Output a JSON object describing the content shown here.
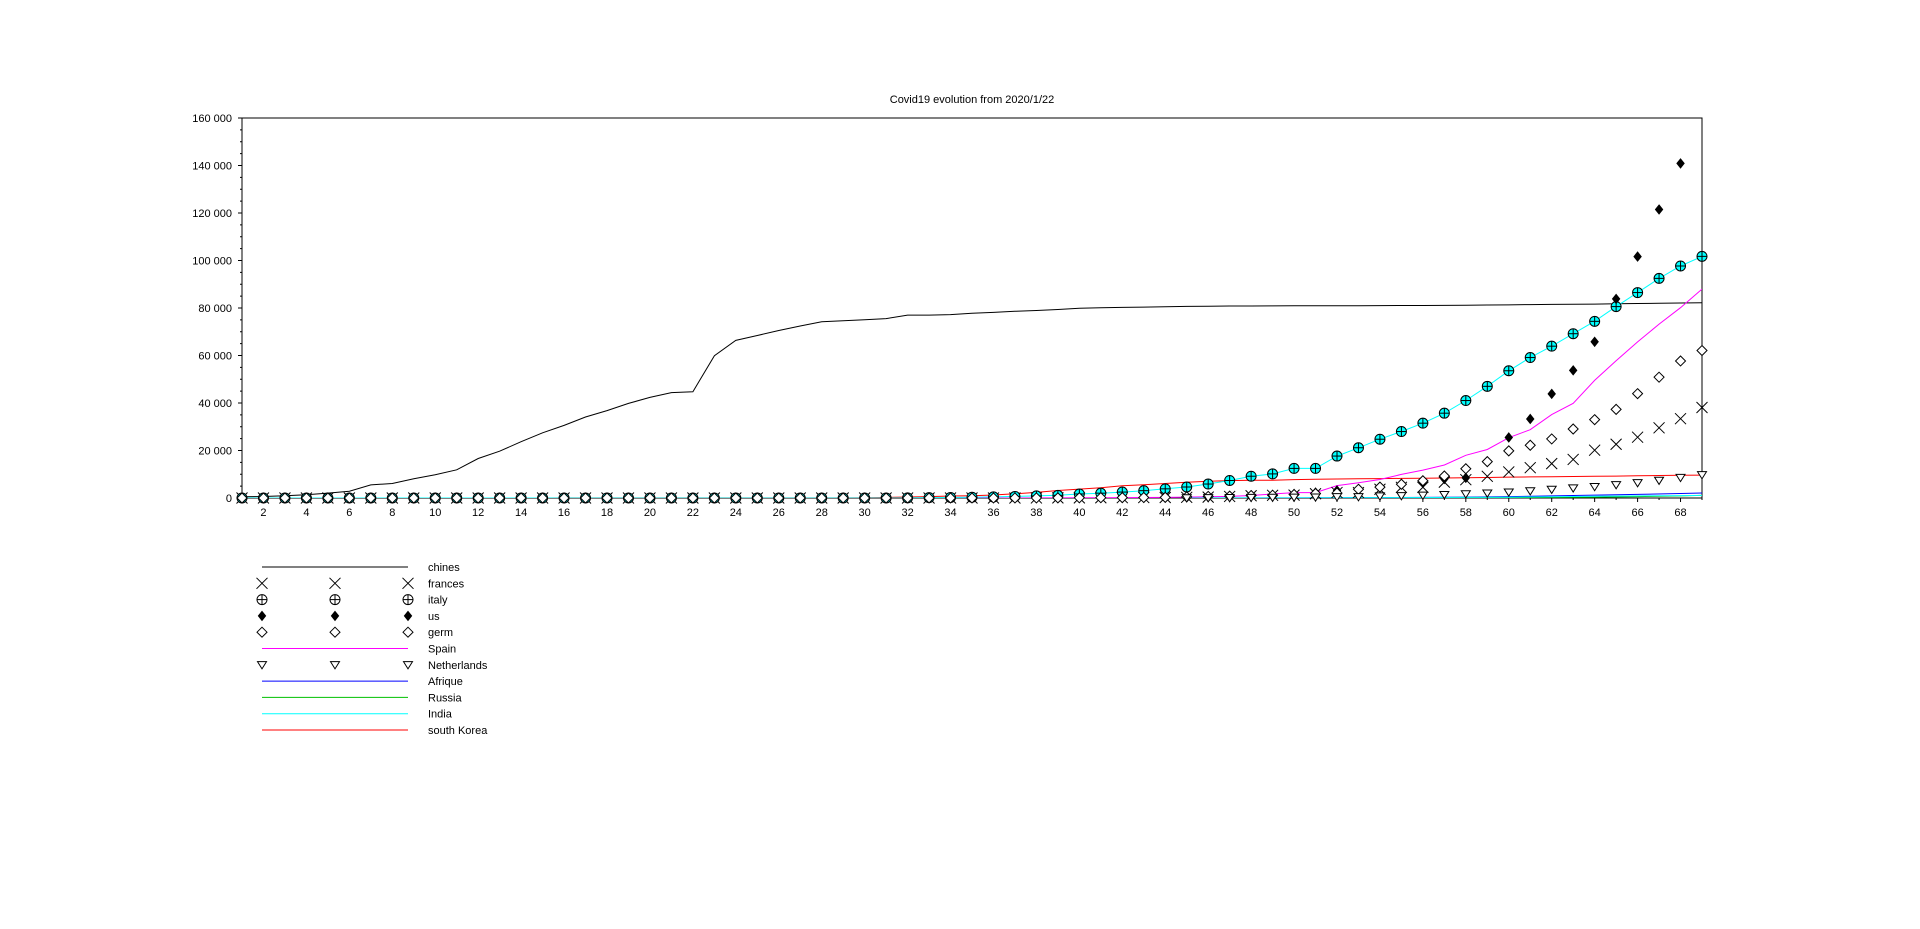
{
  "chart_data": {
    "type": "scatter",
    "title": "Covid19 evolution from 2020/1/22",
    "xlabel": "",
    "ylabel": "",
    "xlim": [
      1,
      69
    ],
    "ylim": [
      0,
      160000
    ],
    "grid": false,
    "legend_position": "bottom-left",
    "x_ticks": [
      2,
      4,
      6,
      8,
      10,
      12,
      14,
      16,
      18,
      20,
      22,
      24,
      26,
      28,
      30,
      32,
      34,
      36,
      38,
      40,
      42,
      44,
      46,
      48,
      50,
      52,
      54,
      56,
      58,
      60,
      62,
      64,
      66,
      68
    ],
    "y_ticks": [
      {
        "value": 0,
        "label": "0"
      },
      {
        "value": 20000,
        "label": "20 000"
      },
      {
        "value": 40000,
        "label": "40 000"
      },
      {
        "value": 60000,
        "label": "60 000"
      },
      {
        "value": 80000,
        "label": "80 000"
      },
      {
        "value": 100000,
        "label": "100 000"
      },
      {
        "value": 120000,
        "label": "120 000"
      },
      {
        "value": 140000,
        "label": "140 000"
      },
      {
        "value": 160000,
        "label": "160 000"
      }
    ],
    "series": [
      {
        "name": "chines",
        "style": "line",
        "color": "#000000",
        "x": [
          1,
          2,
          3,
          4,
          5,
          6,
          7,
          8,
          9,
          10,
          11,
          12,
          13,
          14,
          15,
          16,
          17,
          18,
          19,
          20,
          21,
          22,
          23,
          24,
          25,
          26,
          27,
          28,
          29,
          30,
          31,
          32,
          33,
          34,
          35,
          36,
          37,
          38,
          39,
          40,
          41,
          42,
          43,
          44,
          45,
          46,
          47,
          48,
          49,
          50,
          51,
          52,
          53,
          54,
          55,
          56,
          57,
          58,
          59,
          60,
          61,
          62,
          63,
          64,
          65,
          66,
          67,
          68,
          69
        ],
        "values": [
          548,
          643,
          920,
          1406,
          2075,
          2877,
          5509,
          6087,
          8141,
          9802,
          11891,
          16630,
          19716,
          23707,
          27440,
          30587,
          34110,
          36814,
          39829,
          42354,
          44386,
          44759,
          59895,
          66358,
          68413,
          70513,
          72434,
          74211,
          74619,
          75077,
          75550,
          77001,
          77022,
          77241,
          77754,
          78166,
          78600,
          78928,
          79356,
          79932,
          80136,
          80261,
          80386,
          80537,
          80690,
          80770,
          80823,
          80860,
          80887,
          80921,
          80932,
          80945,
          80977,
          81003,
          81033,
          81058,
          81102,
          81156,
          81250,
          81305,
          81435,
          81498,
          81591,
          81661,
          81782,
          81897,
          81999,
          82122,
          82198
        ]
      },
      {
        "name": "frances",
        "style": "marker",
        "marker": "x",
        "color": "#000000",
        "x": [
          1,
          2,
          3,
          4,
          5,
          6,
          7,
          8,
          9,
          10,
          11,
          12,
          13,
          14,
          15,
          16,
          17,
          18,
          19,
          20,
          21,
          22,
          23,
          24,
          25,
          26,
          27,
          28,
          29,
          30,
          31,
          32,
          33,
          34,
          35,
          36,
          37,
          38,
          39,
          40,
          41,
          42,
          43,
          44,
          45,
          46,
          47,
          48,
          49,
          50,
          51,
          52,
          53,
          54,
          55,
          56,
          57,
          58,
          59,
          60,
          61,
          62,
          63,
          64,
          65,
          66,
          67,
          68,
          69
        ],
        "values": [
          0,
          0,
          2,
          3,
          3,
          3,
          4,
          5,
          5,
          5,
          6,
          6,
          6,
          6,
          6,
          6,
          6,
          11,
          11,
          11,
          11,
          11,
          11,
          11,
          12,
          12,
          12,
          12,
          12,
          12,
          12,
          12,
          12,
          12,
          12,
          12,
          14,
          18,
          38,
          57,
          100,
          130,
          191,
          204,
          288,
          380,
          656,
          959,
          1136,
          1219,
          1794,
          2293,
          2293,
          3681,
          4496,
          4532,
          6683,
          7715,
          9124,
          10970,
          12758,
          14463,
          16243,
          20123,
          22622,
          25600,
          29551,
          33402,
          38105
        ]
      },
      {
        "name": "italy",
        "style": "marker+line",
        "marker": "circle-plus",
        "color": "#000000",
        "line_color": "#00ffff",
        "marker_fill": "#00ffff",
        "x": [
          1,
          2,
          3,
          4,
          5,
          6,
          7,
          8,
          9,
          10,
          11,
          12,
          13,
          14,
          15,
          16,
          17,
          18,
          19,
          20,
          21,
          22,
          23,
          24,
          25,
          26,
          27,
          28,
          29,
          30,
          31,
          32,
          33,
          34,
          35,
          36,
          37,
          38,
          39,
          40,
          41,
          42,
          43,
          44,
          45,
          46,
          47,
          48,
          49,
          50,
          51,
          52,
          53,
          54,
          55,
          56,
          57,
          58,
          59,
          60,
          61,
          62,
          63,
          64,
          65,
          66,
          67,
          68,
          69
        ],
        "values": [
          0,
          0,
          0,
          0,
          0,
          0,
          0,
          0,
          0,
          2,
          2,
          2,
          2,
          2,
          2,
          2,
          3,
          3,
          3,
          3,
          3,
          3,
          3,
          3,
          3,
          3,
          3,
          3,
          3,
          3,
          20,
          62,
          155,
          229,
          322,
          453,
          655,
          888,
          1128,
          1694,
          2036,
          2502,
          3089,
          3858,
          4636,
          5883,
          7375,
          9172,
          10149,
          12462,
          12462,
          17660,
          21157,
          24747,
          27980,
          31506,
          35713,
          41035,
          47021,
          53578,
          59138,
          63927,
          69176,
          74386,
          80589,
          86498,
          92472,
          97689,
          101739
        ]
      },
      {
        "name": "us",
        "style": "marker",
        "marker": "diamond-filled",
        "color": "#000000",
        "x": [
          1,
          2,
          3,
          4,
          5,
          6,
          7,
          8,
          9,
          10,
          11,
          12,
          13,
          14,
          15,
          16,
          17,
          18,
          19,
          20,
          21,
          22,
          23,
          24,
          25,
          26,
          27,
          28,
          29,
          30,
          31,
          32,
          33,
          34,
          35,
          36,
          37,
          38,
          39,
          40,
          41,
          42,
          43,
          44,
          45,
          46,
          47,
          48,
          49,
          50,
          51,
          52,
          53,
          54,
          55,
          56,
          57,
          58,
          59,
          60,
          61,
          62,
          63,
          64,
          65,
          66,
          67,
          68
        ],
        "values": [
          1,
          1,
          2,
          2,
          5,
          5,
          5,
          5,
          5,
          6,
          7,
          8,
          11,
          11,
          11,
          12,
          12,
          12,
          12,
          12,
          13,
          13,
          14,
          14,
          14,
          14,
          14,
          14,
          14,
          14,
          16,
          16,
          16,
          16,
          16,
          16,
          17,
          18,
          20,
          40,
          68,
          98,
          150,
          200,
          311,
          474,
          684,
          1017,
          1296,
          1730,
          2295,
          3174,
          3682,
          4644,
          5998,
          6729,
          8005,
          8500,
          15219,
          25489,
          33276,
          43847,
          53740,
          65778,
          83836,
          101657,
          121478,
          140886
        ]
      },
      {
        "name": "germ",
        "style": "marker",
        "marker": "diamond-open",
        "color": "#000000",
        "x": [
          1,
          2,
          3,
          4,
          5,
          6,
          7,
          8,
          9,
          10,
          11,
          12,
          13,
          14,
          15,
          16,
          17,
          18,
          19,
          20,
          21,
          22,
          23,
          24,
          25,
          26,
          27,
          28,
          29,
          30,
          31,
          32,
          33,
          34,
          35,
          36,
          37,
          38,
          39,
          40,
          41,
          42,
          43,
          44,
          45,
          46,
          47,
          48,
          49,
          50,
          51,
          52,
          53,
          54,
          55,
          56,
          57,
          58,
          59,
          60,
          61,
          62,
          63,
          64,
          65,
          66,
          67,
          68,
          69
        ],
        "values": [
          0,
          0,
          0,
          0,
          0,
          1,
          4,
          4,
          4,
          5,
          8,
          10,
          12,
          12,
          12,
          12,
          13,
          13,
          14,
          14,
          16,
          16,
          16,
          16,
          16,
          16,
          16,
          16,
          16,
          16,
          16,
          16,
          16,
          16,
          16,
          16,
          18,
          26,
          48,
          79,
          130,
          159,
          196,
          262,
          482,
          670,
          799,
          1040,
          1176,
          1457,
          1908,
          2078,
          3675,
          4585,
          5795,
          7272,
          9257,
          12327,
          15320,
          19848,
          22213,
          24873,
          29056,
          32986,
          37323,
          43938,
          50871,
          57695,
          62095
        ]
      },
      {
        "name": "Spain",
        "style": "line",
        "color": "#ff00ff",
        "x": [
          1,
          2,
          3,
          4,
          5,
          6,
          7,
          8,
          9,
          10,
          11,
          12,
          13,
          14,
          15,
          16,
          17,
          18,
          19,
          20,
          21,
          22,
          23,
          24,
          25,
          26,
          27,
          28,
          29,
          30,
          31,
          32,
          33,
          34,
          35,
          36,
          37,
          38,
          39,
          40,
          41,
          42,
          43,
          44,
          45,
          46,
          47,
          48,
          49,
          50,
          51,
          52,
          53,
          54,
          55,
          56,
          57,
          58,
          59,
          60,
          61,
          62,
          63,
          64,
          65,
          66,
          67,
          68,
          69
        ],
        "values": [
          0,
          0,
          0,
          0,
          0,
          0,
          0,
          0,
          0,
          1,
          1,
          1,
          1,
          1,
          1,
          1,
          1,
          1,
          1,
          2,
          2,
          2,
          2,
          2,
          2,
          2,
          2,
          2,
          2,
          2,
          2,
          2,
          2,
          2,
          6,
          13,
          15,
          32,
          45,
          84,
          120,
          165,
          222,
          259,
          400,
          500,
          673,
          1073,
          1695,
          2277,
          2277,
          5232,
          6391,
          7798,
          9942,
          11748,
          13910,
          17963,
          20410,
          25374,
          28768,
          35136,
          39885,
          49515,
          57786,
          65719,
          73235,
          80110,
          87956
        ]
      },
      {
        "name": "Netherlands",
        "style": "marker",
        "marker": "triangle-down-open",
        "color": "#000000",
        "x": [
          45,
          46,
          47,
          48,
          49,
          50,
          51,
          52,
          53,
          54,
          55,
          56,
          57,
          58,
          59,
          60,
          61,
          62,
          63,
          64,
          65,
          66,
          67,
          68,
          69
        ],
        "values": [
          38,
          82,
          128,
          188,
          265,
          321,
          382,
          503,
          503,
          806,
          962,
          1138,
          1416,
          1711,
          2058,
          2467,
          3003,
          3640,
          4216,
          4764,
          5580,
          6412,
          7431,
          8603,
          9762
        ]
      },
      {
        "name": "Afrique",
        "style": "line",
        "color": "#0000ff",
        "x": [
          45,
          50,
          55,
          58,
          60,
          62,
          64,
          66,
          68,
          69
        ],
        "values": [
          20,
          60,
          200,
          400,
          600,
          900,
          1200,
          1500,
          1900,
          2100
        ]
      },
      {
        "name": "Russia",
        "style": "line",
        "color": "#00c000",
        "x": [
          45,
          50,
          55,
          58,
          60,
          62,
          64,
          66,
          68,
          69
        ],
        "values": [
          10,
          20,
          60,
          100,
          150,
          250,
          400,
          600,
          900,
          1100
        ]
      },
      {
        "name": "India",
        "style": "line",
        "color": "#00ffff",
        "x": [
          45,
          50,
          55,
          58,
          60,
          62,
          64,
          66,
          68,
          69
        ],
        "values": [
          30,
          60,
          150,
          250,
          350,
          500,
          700,
          900,
          1000,
          1100
        ]
      },
      {
        "name": "south Korea",
        "style": "line",
        "color": "#ff0000",
        "x": [
          1,
          2,
          3,
          4,
          5,
          6,
          7,
          8,
          9,
          10,
          11,
          12,
          13,
          14,
          15,
          16,
          17,
          18,
          19,
          20,
          21,
          22,
          23,
          24,
          25,
          26,
          27,
          28,
          29,
          30,
          31,
          32,
          33,
          34,
          35,
          36,
          37,
          38,
          39,
          40,
          41,
          42,
          43,
          44,
          45,
          46,
          47,
          48,
          49,
          50,
          51,
          52,
          53,
          54,
          55,
          56,
          57,
          58,
          59,
          60,
          61,
          62,
          63,
          64,
          65,
          66,
          67,
          68,
          69
        ],
        "values": [
          1,
          1,
          2,
          2,
          3,
          4,
          4,
          4,
          4,
          11,
          12,
          15,
          15,
          16,
          19,
          23,
          24,
          24,
          25,
          27,
          28,
          28,
          28,
          28,
          28,
          29,
          30,
          31,
          31,
          104,
          204,
          433,
          602,
          833,
          977,
          1261,
          1766,
          2337,
          3150,
          3736,
          4335,
          5186,
          5621,
          6088,
          6593,
          7041,
          7314,
          7478,
          7513,
          7755,
          7869,
          7979,
          8086,
          8162,
          8236,
          8320,
          8413,
          8565,
          8652,
          8799,
          8897,
          8961,
          9037,
          9137,
          9241,
          9332,
          9478,
          9583,
          9661
        ]
      }
    ]
  }
}
